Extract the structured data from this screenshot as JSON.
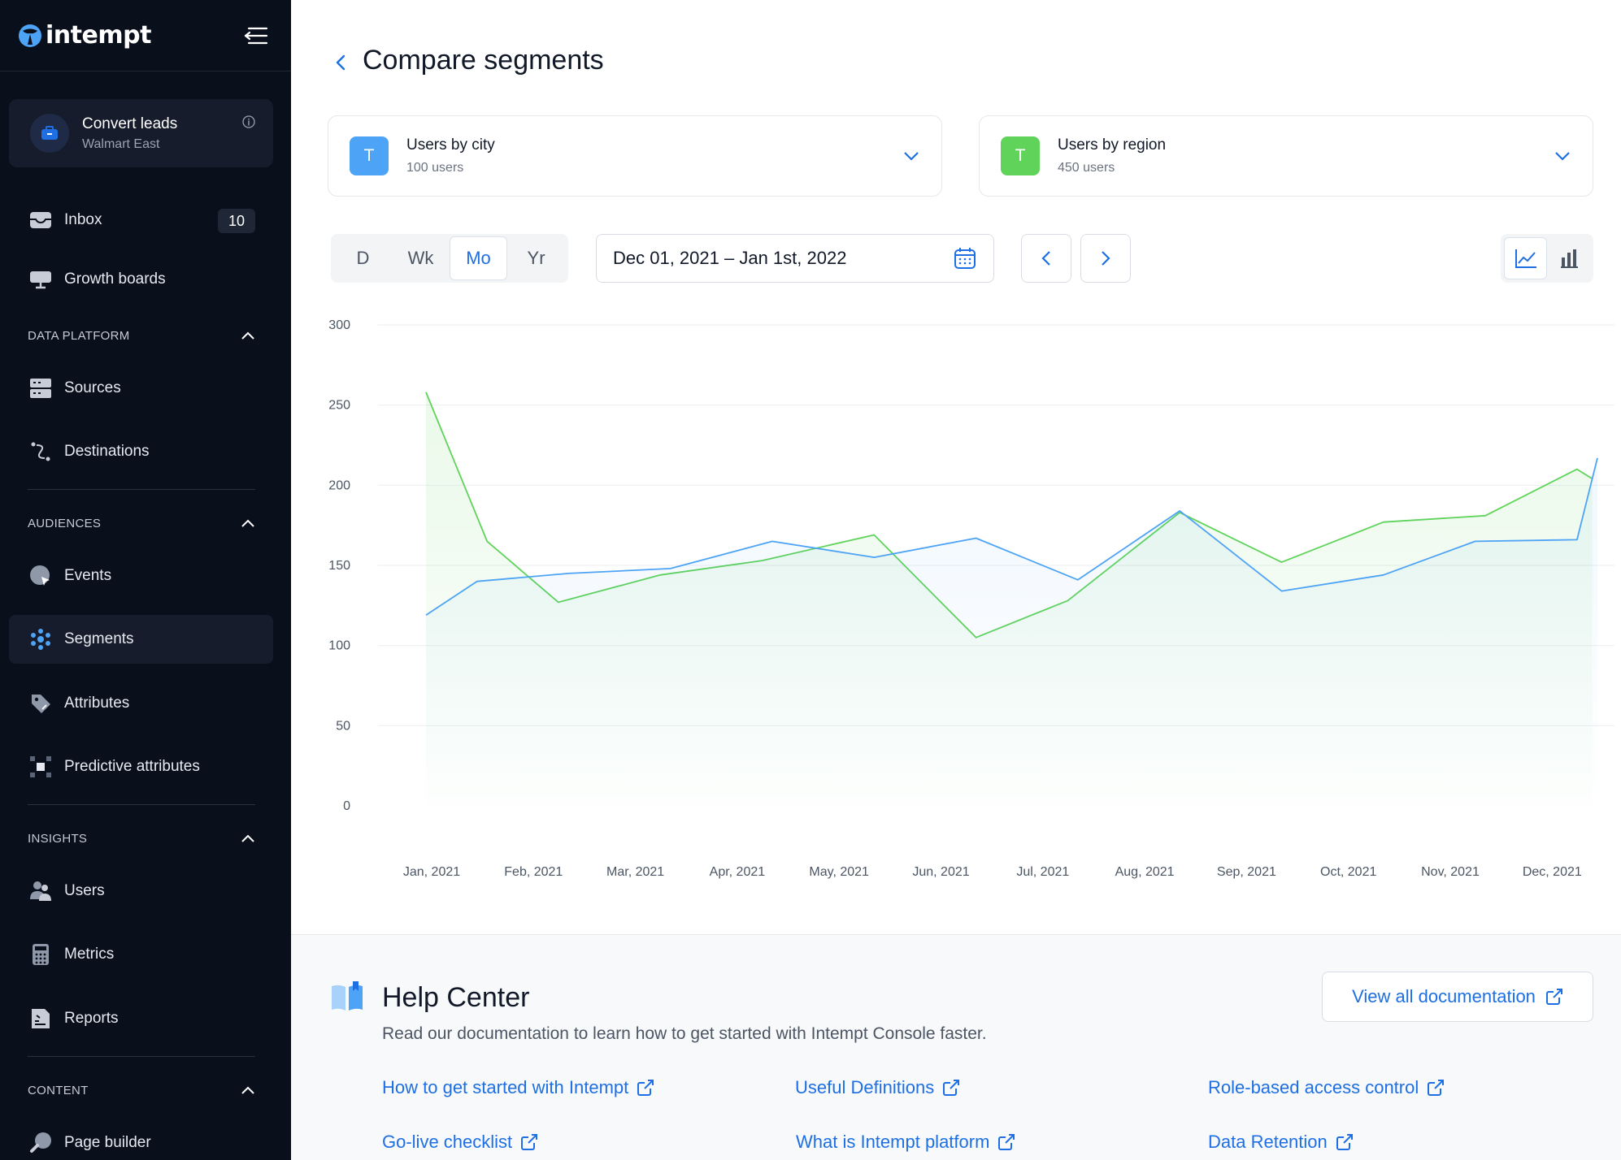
{
  "app": {
    "logo_text": "intempt"
  },
  "workspace": {
    "title": "Convert leads",
    "subtitle": "Walmart East"
  },
  "sidebar": {
    "inbox": {
      "label": "Inbox",
      "badge": "10"
    },
    "growth_boards": {
      "label": "Growth boards"
    },
    "sections": {
      "data_platform": "DATA PLATFORM",
      "audiences": "AUDIENCES",
      "insights": "INSIGHTS",
      "content": "CONTENT"
    },
    "items": {
      "sources": "Sources",
      "destinations": "Destinations",
      "events": "Events",
      "segments": "Segments",
      "attributes": "Attributes",
      "predictive_attributes": "Predictive attributes",
      "users": "Users",
      "metrics": "Metrics",
      "reports": "Reports",
      "page_builder": "Page builder"
    }
  },
  "page": {
    "title": "Compare segments"
  },
  "segments": [
    {
      "avatar": "T",
      "title": "Users by city",
      "subtitle": "100 users",
      "color": "#4da3f5"
    },
    {
      "avatar": "T",
      "title": "Users by region",
      "subtitle": "450 users",
      "color": "#5fd35a"
    }
  ],
  "periods": {
    "day": "D",
    "week": "Wk",
    "month": "Mo",
    "year": "Yr",
    "selected": "Mo"
  },
  "date_range": {
    "value": "Dec 01, 2021 – Jan 1st, 2022"
  },
  "view_mode": "line",
  "chart_data": {
    "type": "area",
    "categories": [
      "Jan, 2021",
      "Feb, 2021",
      "Mar, 2021",
      "Apr, 2021",
      "May, 2021",
      "Jun, 2021",
      "Jul, 2021",
      "Aug, 2021",
      "Sep, 2021",
      "Oct, 2021",
      "Nov, 2021",
      "Dec, 2021"
    ],
    "y_ticks": [
      0,
      50,
      100,
      150,
      200,
      250,
      300
    ],
    "ylim": [
      0,
      300
    ],
    "grid": true,
    "series": [
      {
        "color": "#5fd35a",
        "points": [
          [
            0,
            258
          ],
          [
            0.6,
            165
          ],
          [
            1.3,
            127
          ],
          [
            2.3,
            144
          ],
          [
            3.3,
            153
          ],
          [
            4.4,
            169
          ],
          [
            5.4,
            105
          ],
          [
            6.3,
            128
          ],
          [
            7.4,
            183
          ],
          [
            8.4,
            152
          ],
          [
            9.4,
            177
          ],
          [
            10.4,
            181
          ],
          [
            11.3,
            210
          ],
          [
            11.45,
            204
          ]
        ]
      },
      {
        "color": "#4da3f5",
        "points": [
          [
            0,
            119
          ],
          [
            0.5,
            140
          ],
          [
            1.4,
            145
          ],
          [
            2.4,
            148
          ],
          [
            3.4,
            165
          ],
          [
            4.4,
            155
          ],
          [
            5.4,
            167
          ],
          [
            6.4,
            141
          ],
          [
            7.4,
            184
          ],
          [
            8.4,
            134
          ],
          [
            9.4,
            144
          ],
          [
            10.3,
            165
          ],
          [
            11.3,
            166
          ],
          [
            11.5,
            217
          ]
        ]
      }
    ]
  },
  "help": {
    "title": "Help Center",
    "description": "Read our documentation to learn how to get started with Intempt Console faster.",
    "view_all": "View all documentation",
    "links": [
      "How to get started with Intempt",
      "Useful Definitions",
      "Role-based access control",
      "Go-live checklist",
      "What is Intempt platform",
      "Data Retention"
    ]
  },
  "colors": {
    "accent": "#1d6fe3",
    "sidebar_bg": "#0a0f1c"
  }
}
